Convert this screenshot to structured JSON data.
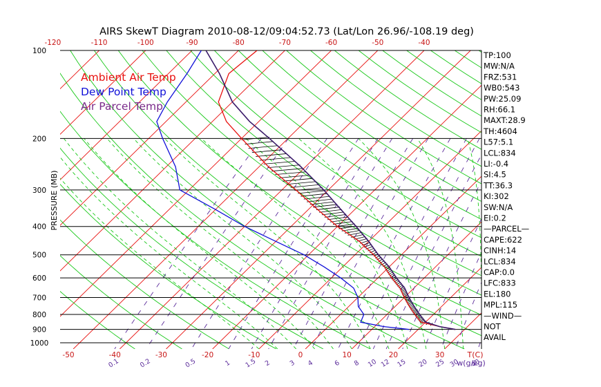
{
  "chart_data": {
    "type": "line",
    "title": "AIRS SkewT Diagram 2010-08-12/09:04:52.73 (Lat/Lon 26.96/-108.19 deg)",
    "ylabel": "PRESSURE (MB)",
    "xlabel": "T(C)",
    "mixing_label": "w(g/kg)",
    "pressure_ticks": [
      "100",
      "200",
      "300",
      "400",
      "500",
      "600",
      "700",
      "800",
      "900",
      "1000"
    ],
    "pressure_tick_values": [
      100,
      200,
      300,
      400,
      500,
      600,
      700,
      800,
      900,
      1000
    ],
    "top_temp_labels": [
      "-120",
      "-110",
      "-100",
      "-90",
      "-80",
      "-70",
      "-60",
      "-50",
      "-40"
    ],
    "top_temp_values": [
      -120,
      -110,
      -100,
      -90,
      -80,
      -70,
      -60,
      -50,
      -40
    ],
    "bottom_temp_labels": [
      "-50",
      "-40",
      "-30",
      "-20",
      "-10",
      "0",
      "10",
      "20",
      "30"
    ],
    "bottom_temp_values": [
      -50,
      -40,
      -30,
      -20,
      -10,
      0,
      10,
      20,
      30
    ],
    "mixing_labels": [
      "0.1",
      "0.2",
      "0.5",
      "1",
      "1.5",
      "2",
      "3",
      "4",
      "6",
      "8",
      "10",
      "12",
      "15",
      "20",
      "25",
      "30",
      "40"
    ],
    "mixing_values": [
      0.1,
      0.2,
      0.5,
      1,
      1.5,
      2,
      3,
      4,
      6,
      8,
      10,
      12,
      15,
      20,
      25,
      30,
      40
    ],
    "legend": [
      {
        "name": "Ambient Air Temp",
        "color": "#e8100e"
      },
      {
        "name": "Dew Point Temp",
        "color": "#1010d8"
      },
      {
        "name": "Air Parcel Temp",
        "color": "#7a2a8a"
      }
    ],
    "series": [
      {
        "name": "Ambient Air Temp",
        "color": "#e8100e",
        "points": [
          [
            100,
            -76
          ],
          [
            120,
            -77
          ],
          [
            150,
            -73
          ],
          [
            175,
            -67
          ],
          [
            200,
            -60
          ],
          [
            250,
            -48
          ],
          [
            300,
            -37
          ],
          [
            350,
            -28
          ],
          [
            400,
            -20
          ],
          [
            450,
            -12
          ],
          [
            500,
            -6
          ],
          [
            550,
            -1
          ],
          [
            600,
            3
          ],
          [
            650,
            7
          ],
          [
            700,
            10
          ],
          [
            750,
            13
          ],
          [
            800,
            16
          ],
          [
            850,
            19
          ],
          [
            880,
            24
          ],
          [
            900,
            28
          ]
        ]
      },
      {
        "name": "Dew Point Temp",
        "color": "#1010d8",
        "points": [
          [
            100,
            -88
          ],
          [
            120,
            -86
          ],
          [
            150,
            -84
          ],
          [
            175,
            -82
          ],
          [
            200,
            -77
          ],
          [
            250,
            -68
          ],
          [
            300,
            -62
          ],
          [
            350,
            -50
          ],
          [
            400,
            -40
          ],
          [
            450,
            -30
          ],
          [
            500,
            -21
          ],
          [
            550,
            -14
          ],
          [
            600,
            -8
          ],
          [
            650,
            -3
          ],
          [
            700,
            0
          ],
          [
            750,
            2
          ],
          [
            800,
            5
          ],
          [
            850,
            6
          ],
          [
            880,
            12
          ],
          [
            900,
            18
          ]
        ]
      },
      {
        "name": "Air Parcel Temp",
        "color": "#7a2a8a",
        "points": [
          [
            100,
            -87
          ],
          [
            120,
            -79
          ],
          [
            150,
            -70
          ],
          [
            175,
            -62
          ],
          [
            200,
            -54
          ],
          [
            250,
            -41
          ],
          [
            300,
            -31
          ],
          [
            350,
            -23
          ],
          [
            400,
            -16
          ],
          [
            450,
            -10
          ],
          [
            500,
            -5
          ],
          [
            550,
            0
          ],
          [
            600,
            4
          ],
          [
            650,
            8
          ],
          [
            700,
            11
          ],
          [
            750,
            14
          ],
          [
            800,
            17
          ],
          [
            850,
            20
          ],
          [
            880,
            24
          ],
          [
            900,
            28
          ]
        ]
      }
    ],
    "indices": [
      "TP:100",
      "MW:N/A",
      "FRZ:531",
      "WB0:543",
      "PW:25.09",
      "RH:66.1",
      "MAXT:28.9",
      "TH:4604",
      "L57:5.1",
      "LCL:834",
      "LI:-0.4",
      "SI:4.5",
      "TT:36.3",
      "KI:302",
      "SW:N/A",
      "EI:0.2",
      "—PARCEL—",
      "CAPE:622",
      "CINH:14",
      "LCL:834",
      "CAP:0.0",
      "LFC:833",
      "EL:180",
      "MPL:115",
      "—WIND—",
      "NOT",
      "AVAIL"
    ],
    "colors": {
      "isotherm": "#e8100e",
      "dry_adiabat": "#18c818",
      "moist_adiabat": "#18c818",
      "mixing_ratio": "#5a2a9a",
      "isobar": "#000000",
      "ambient": "#e8100e",
      "dewpoint": "#1010d8",
      "parcel": "#3a1a6a",
      "axis_labels": "#c81414",
      "mixing_labels": "#5a2a9a"
    }
  }
}
